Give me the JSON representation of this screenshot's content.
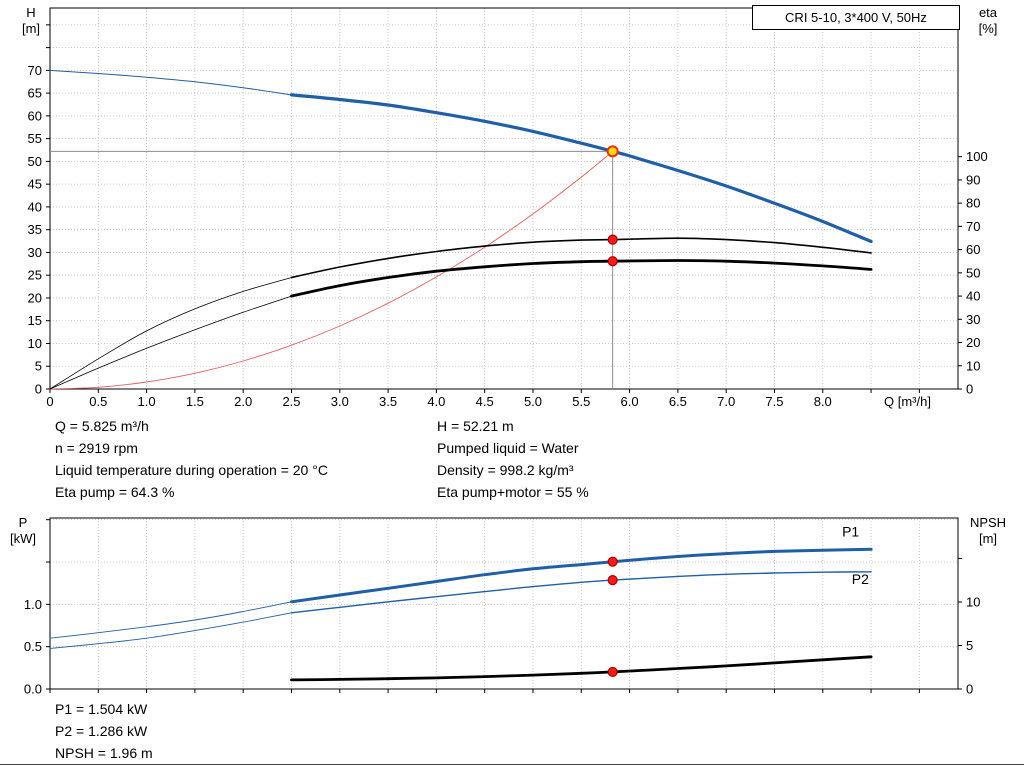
{
  "axes_labels": {
    "hq_left": [
      "H",
      "[m]"
    ],
    "hq_right": [
      "eta",
      "[%]"
    ],
    "power_left": [
      "P",
      "[kW]"
    ],
    "power_right": [
      "NPSH",
      "[m]"
    ]
  },
  "operating_point_info": {
    "left": [
      "Q = 5.825 m³/h",
      "n = 2919 rpm",
      "Liquid temperature during operation = 20 °C",
      "Eta pump = 64.3 %"
    ],
    "right": [
      "H = 52.21 m",
      "Pumped liquid = Water",
      "Density = 998.2 kg/m³",
      "Eta pump+motor = 55 %"
    ]
  },
  "results": [
    "P1 = 1.504 kW",
    "P2 = 1.286 kW",
    "NPSH = 1.96 m"
  ],
  "colors": {
    "curve_blue": "#1e5fa8",
    "system_red": "#e06060",
    "marker_red": "#ff1a1a",
    "duty_yellow": "#ffdd00",
    "grid": "#bbbbbb",
    "crosshair": "#8c8c8c"
  },
  "chart_data": [
    {
      "type": "line",
      "name": "hq-chart",
      "title": "CRI 5-10, 3*400 V, 50Hz",
      "x_axis": {
        "label": "Q [m³/h]",
        "min": 0,
        "max": 9.4,
        "ticks": [
          [
            0,
            "0"
          ],
          [
            0.5,
            "0.5"
          ],
          [
            1,
            "1.0"
          ],
          [
            1.5,
            "1.5"
          ],
          [
            2,
            "2.0"
          ],
          [
            2.5,
            "2.5"
          ],
          [
            3,
            "3.0"
          ],
          [
            3.5,
            "3.5"
          ],
          [
            4,
            "4.0"
          ],
          [
            4.5,
            "4.5"
          ],
          [
            5,
            "5.0"
          ],
          [
            5.5,
            "5.5"
          ],
          [
            6,
            "6.0"
          ],
          [
            6.5,
            "6.5"
          ],
          [
            7,
            "7.0"
          ],
          [
            7.5,
            "7.5"
          ],
          [
            8,
            "8.0"
          ],
          [
            8.5,
            ""
          ],
          [
            9,
            ""
          ]
        ]
      },
      "y_left": {
        "label": "H [m]",
        "min": 0,
        "max": 83.7,
        "ticks": [
          [
            0,
            "0"
          ],
          [
            5,
            "5"
          ],
          [
            10,
            "10"
          ],
          [
            15,
            "15"
          ],
          [
            20,
            "20"
          ],
          [
            25,
            "25"
          ],
          [
            30,
            "30"
          ],
          [
            35,
            "35"
          ],
          [
            40,
            "40"
          ],
          [
            45,
            "45"
          ],
          [
            50,
            "50"
          ],
          [
            55,
            "55"
          ],
          [
            60,
            "60"
          ],
          [
            65,
            "65"
          ],
          [
            70,
            "70"
          ],
          [
            75,
            ""
          ],
          [
            80,
            ""
          ]
        ]
      },
      "y_right": {
        "label": "eta [%]",
        "min": 0,
        "max": 164,
        "ticks": [
          [
            0,
            "0"
          ],
          [
            10,
            "10"
          ],
          [
            20,
            "20"
          ],
          [
            30,
            "30"
          ],
          [
            40,
            "40"
          ],
          [
            50,
            "50"
          ],
          [
            60,
            "60"
          ],
          [
            70,
            "70"
          ],
          [
            80,
            "80"
          ],
          [
            90,
            "90"
          ],
          [
            100,
            "100"
          ]
        ]
      },
      "crosshair": {
        "x": 5.825,
        "y": 52.21
      },
      "series": [
        {
          "name": "qh-curve-extension",
          "axis": "left",
          "color": "#1e5fa8",
          "width": 1,
          "points": [
            [
              0,
              70
            ],
            [
              0.5,
              69.3
            ],
            [
              1,
              68.5
            ],
            [
              1.5,
              67.5
            ],
            [
              2,
              66.2
            ],
            [
              2.5,
              64.6
            ]
          ]
        },
        {
          "name": "qh-curve",
          "axis": "left",
          "color": "#1e5fa8",
          "width": 3.2,
          "points": [
            [
              2.5,
              64.6
            ],
            [
              3,
              63.6
            ],
            [
              3.5,
              62.4
            ],
            [
              4,
              60.7
            ],
            [
              4.5,
              58.8
            ],
            [
              5,
              56.6
            ],
            [
              5.5,
              54.0
            ],
            [
              5.825,
              52.21
            ],
            [
              6,
              51.2
            ],
            [
              6.5,
              48.0
            ],
            [
              7,
              44.6
            ],
            [
              7.5,
              40.8
            ],
            [
              8,
              36.8
            ],
            [
              8.5,
              32.4
            ]
          ]
        },
        {
          "name": "system-curve",
          "axis": "left",
          "color": "#e06060",
          "width": 0.9,
          "points": [
            [
              0,
              0
            ],
            [
              0.5,
              0.38
            ],
            [
              1,
              1.54
            ],
            [
              1.5,
              3.46
            ],
            [
              2,
              6.15
            ],
            [
              2.5,
              9.62
            ],
            [
              3,
              13.85
            ],
            [
              3.5,
              18.85
            ],
            [
              4,
              24.62
            ],
            [
              4.5,
              31.16
            ],
            [
              5,
              38.47
            ],
            [
              5.5,
              46.55
            ],
            [
              5.825,
              52.21
            ]
          ]
        },
        {
          "name": "eta-pump-curve-extension",
          "axis": "right",
          "color": "#000000",
          "width": 0.8,
          "points": [
            [
              0,
              0
            ],
            [
              0.5,
              13
            ],
            [
              1,
              25
            ],
            [
              1.5,
              34.5
            ],
            [
              2,
              42
            ],
            [
              2.5,
              48
            ]
          ]
        },
        {
          "name": "eta-pump-curve",
          "axis": "right",
          "color": "#000000",
          "width": 1.6,
          "points": [
            [
              2.5,
              48
            ],
            [
              3,
              52.5
            ],
            [
              3.5,
              56.2
            ],
            [
              4,
              59.2
            ],
            [
              4.5,
              61.5
            ],
            [
              5,
              63.2
            ],
            [
              5.5,
              64.1
            ],
            [
              5.825,
              64.3
            ],
            [
              6.5,
              64.9
            ],
            [
              7,
              64.3
            ],
            [
              7.5,
              63.0
            ],
            [
              8,
              61.0
            ],
            [
              8.5,
              58.6
            ]
          ]
        },
        {
          "name": "eta-pump-motor-curve-extension",
          "axis": "right",
          "color": "#000000",
          "width": 0.8,
          "points": [
            [
              0,
              0
            ],
            [
              0.5,
              9
            ],
            [
              1,
              17.5
            ],
            [
              1.5,
              25.5
            ],
            [
              2,
              33
            ],
            [
              2.5,
              40
            ]
          ]
        },
        {
          "name": "eta-pump-motor-curve",
          "axis": "right",
          "color": "#000000",
          "width": 2.8,
          "points": [
            [
              2.5,
              40
            ],
            [
              3,
              44.5
            ],
            [
              3.5,
              48
            ],
            [
              4,
              50.7
            ],
            [
              4.5,
              52.6
            ],
            [
              5,
              54
            ],
            [
              5.5,
              54.8
            ],
            [
              5.825,
              55
            ],
            [
              6.5,
              55.3
            ],
            [
              7,
              55
            ],
            [
              7.5,
              54.2
            ],
            [
              8,
              53
            ],
            [
              8.5,
              51.5
            ]
          ]
        }
      ],
      "markers": [
        {
          "name": "eta-pump-point",
          "axis": "right",
          "x": 5.825,
          "y": 64.3,
          "r": 4.5,
          "fill": "#ff1a1a",
          "stroke": "#aa0000"
        },
        {
          "name": "eta-pump-motor-point",
          "axis": "right",
          "x": 5.825,
          "y": 55,
          "r": 4.5,
          "fill": "#ff1a1a",
          "stroke": "#aa0000"
        },
        {
          "name": "duty-point",
          "axis": "left",
          "x": 5.825,
          "y": 52.21,
          "r": 5,
          "fill": "#ffdd00",
          "stroke": "#ff2a00",
          "stroke_width": 2
        }
      ],
      "operating_point": {
        "Q": 5.825,
        "H": 52.21,
        "eta_pump": 64.3,
        "eta_pump_motor": 55
      }
    },
    {
      "type": "line",
      "name": "power-npsh-chart",
      "x_axis": {
        "label": "",
        "min": 0,
        "max": 9.4,
        "ticks": [
          [
            0,
            ""
          ],
          [
            0.5,
            ""
          ],
          [
            1,
            ""
          ],
          [
            1.5,
            ""
          ],
          [
            2,
            ""
          ],
          [
            2.5,
            ""
          ],
          [
            3,
            ""
          ],
          [
            3.5,
            ""
          ],
          [
            4,
            ""
          ],
          [
            4.5,
            ""
          ],
          [
            5,
            ""
          ],
          [
            5.5,
            ""
          ],
          [
            6,
            ""
          ],
          [
            6.5,
            ""
          ],
          [
            7,
            ""
          ],
          [
            7.5,
            ""
          ],
          [
            8,
            ""
          ],
          [
            8.5,
            ""
          ],
          [
            9,
            ""
          ]
        ]
      },
      "y_left": {
        "label": "P [kW]",
        "min": 0,
        "max": 2.02,
        "ticks": [
          [
            0,
            "0.0"
          ],
          [
            0.5,
            "0.5"
          ],
          [
            1,
            "1.0"
          ],
          [
            1.5,
            ""
          ],
          [
            2,
            ""
          ]
        ]
      },
      "y_right": {
        "label": "NPSH [m]",
        "min": 0,
        "max": 19.65,
        "ticks": [
          [
            0,
            "0"
          ],
          [
            5,
            "5"
          ],
          [
            10,
            "10"
          ],
          [
            15,
            ""
          ]
        ]
      },
      "series": [
        {
          "name": "p1-curve-extension",
          "axis": "left",
          "color": "#1e5fa8",
          "width": 0.9,
          "points": [
            [
              0,
              0.6
            ],
            [
              0.5,
              0.665
            ],
            [
              1,
              0.735
            ],
            [
              1.5,
              0.815
            ],
            [
              2,
              0.915
            ],
            [
              2.5,
              1.03
            ]
          ]
        },
        {
          "name": "p1-curve",
          "axis": "left",
          "color": "#1e5fa8",
          "width": 3,
          "points": [
            [
              2.5,
              1.03
            ],
            [
              3,
              1.11
            ],
            [
              3.5,
              1.19
            ],
            [
              4,
              1.27
            ],
            [
              4.5,
              1.35
            ],
            [
              5,
              1.42
            ],
            [
              5.5,
              1.47
            ],
            [
              5.825,
              1.504
            ],
            [
              6.5,
              1.565
            ],
            [
              7,
              1.6
            ],
            [
              7.5,
              1.625
            ],
            [
              8,
              1.64
            ],
            [
              8.5,
              1.65
            ]
          ]
        },
        {
          "name": "p2-curve-extension",
          "axis": "left",
          "color": "#1e5fa8",
          "width": 0.9,
          "points": [
            [
              0,
              0.48
            ],
            [
              0.5,
              0.535
            ],
            [
              1,
              0.6
            ],
            [
              1.5,
              0.69
            ],
            [
              2,
              0.79
            ],
            [
              2.5,
              0.9
            ]
          ]
        },
        {
          "name": "p2-curve",
          "axis": "left",
          "color": "#1e5fa8",
          "width": 1.4,
          "points": [
            [
              2.5,
              0.9
            ],
            [
              3,
              0.965
            ],
            [
              3.5,
              1.03
            ],
            [
              4,
              1.09
            ],
            [
              4.5,
              1.15
            ],
            [
              5,
              1.21
            ],
            [
              5.5,
              1.26
            ],
            [
              5.825,
              1.286
            ],
            [
              6.5,
              1.33
            ],
            [
              7,
              1.355
            ],
            [
              7.5,
              1.37
            ],
            [
              8,
              1.38
            ],
            [
              8.5,
              1.385
            ]
          ]
        },
        {
          "name": "npsh-curve",
          "axis": "right",
          "color": "#000000",
          "width": 2.8,
          "points": [
            [
              2.5,
              1.05
            ],
            [
              3,
              1.1
            ],
            [
              3.5,
              1.18
            ],
            [
              4,
              1.28
            ],
            [
              4.5,
              1.42
            ],
            [
              5,
              1.6
            ],
            [
              5.5,
              1.8
            ],
            [
              5.825,
              1.96
            ],
            [
              6.5,
              2.35
            ],
            [
              7,
              2.65
            ],
            [
              7.5,
              3.0
            ],
            [
              8,
              3.35
            ],
            [
              8.5,
              3.7
            ]
          ]
        }
      ],
      "curve_labels": [
        {
          "name": "p1-label",
          "text": "P1",
          "axis": "left",
          "x": 8.2,
          "y": 1.8,
          "color": "#1e5fa8"
        },
        {
          "name": "p2-label",
          "text": "P2",
          "axis": "left",
          "x": 8.3,
          "y": 1.24,
          "color": "#1e5fa8"
        }
      ],
      "markers": [
        {
          "name": "p1-point",
          "axis": "left",
          "x": 5.825,
          "y": 1.504,
          "r": 4.5,
          "fill": "#ff1a1a",
          "stroke": "#aa0000"
        },
        {
          "name": "p2-point",
          "axis": "left",
          "x": 5.825,
          "y": 1.286,
          "r": 4.5,
          "fill": "#ff1a1a",
          "stroke": "#aa0000"
        },
        {
          "name": "npsh-point",
          "axis": "right",
          "x": 5.825,
          "y": 1.96,
          "r": 4.5,
          "fill": "#ff1a1a",
          "stroke": "#aa0000"
        }
      ],
      "operating_point": {
        "Q": 5.825,
        "P1": 1.504,
        "P2": 1.286,
        "NPSH": 1.96
      }
    }
  ]
}
